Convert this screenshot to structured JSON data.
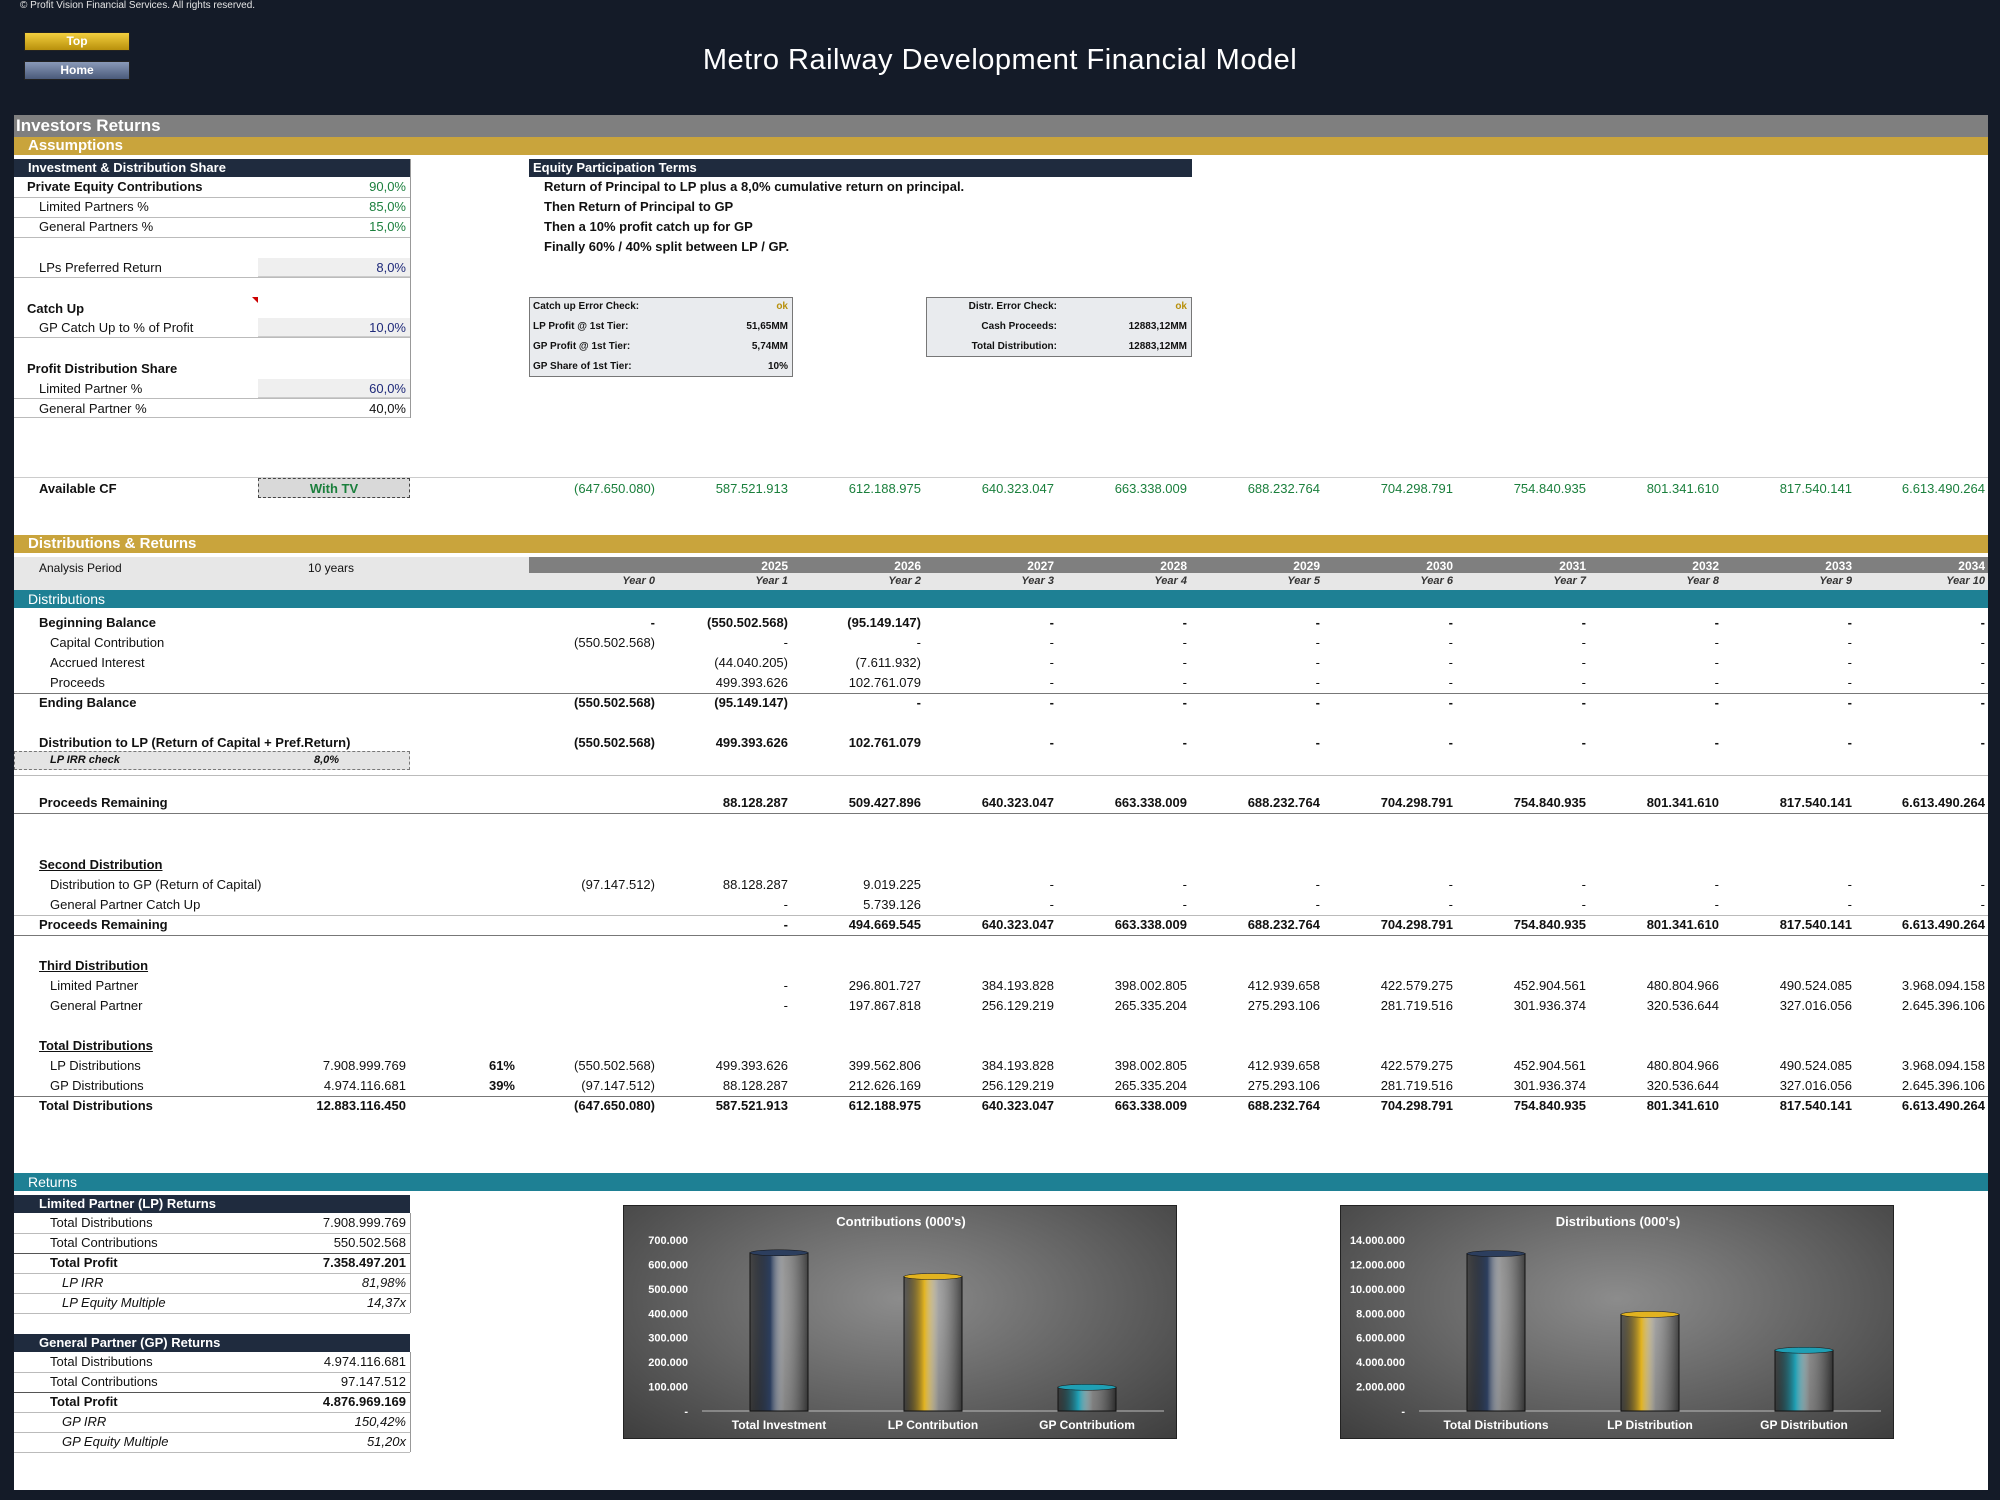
{
  "copyright": "© Profit Vision Financial Services. All rights reserved.",
  "nav": {
    "top": "Top",
    "home": "Home"
  },
  "title": "Metro Railway Development Financial Model",
  "section_title": "Investors Returns",
  "assumptions": {
    "band": "Assumptions",
    "header": "Investment & Distribution Share",
    "pe_label": "Private Equity Contributions",
    "pe_value": "90,0%",
    "lp_label": "Limited Partners %",
    "lp_value": "85,0%",
    "gp_label": "General Partners %",
    "gp_value": "15,0%",
    "pref_label": "LPs Preferred Return",
    "pref_value": "8,0%",
    "catchup_title": "Catch Up",
    "catchup_label": "GP Catch Up to % of Profit",
    "catchup_value": "10,0%",
    "profit_title": "Profit Distribution Share",
    "lp_share_label": "Limited Partner %",
    "lp_share_value": "60,0%",
    "gp_share_label": "General Partner %",
    "gp_share_value": "40,0%"
  },
  "terms": {
    "header": "Equity Participation Terms",
    "lines": [
      "Return of Principal to LP plus a 8,0% cumulative return on principal.",
      "Then Return of Principal to GP",
      "Then a 10% profit catch up for GP",
      "Finally 60% / 40% split between LP / GP."
    ]
  },
  "catchup_check": {
    "rows": [
      {
        "label": "Catch up Error Check:",
        "value": "ok"
      },
      {
        "label": "LP Profit @ 1st Tier:",
        "value": "51,65MM"
      },
      {
        "label": "GP Profit @ 1st Tier:",
        "value": "5,74MM"
      },
      {
        "label": "GP Share of 1st Tier:",
        "value": "10%"
      }
    ]
  },
  "distr_check": {
    "rows": [
      {
        "label": "Distr. Error Check:",
        "value": "ok"
      },
      {
        "label": "Cash Proceeds:",
        "value": "12883,12MM"
      },
      {
        "label": "Total Distribution:",
        "value": "12883,12MM"
      }
    ]
  },
  "available_cf": {
    "label": "Available CF",
    "selector": "With TV",
    "values": [
      "(647.650.080)",
      "587.521.913",
      "612.188.975",
      "640.323.047",
      "663.338.009",
      "688.232.764",
      "704.298.791",
      "754.840.935",
      "801.341.610",
      "817.540.141",
      "6.613.490.264"
    ]
  },
  "dist_returns": {
    "band": "Distributions & Returns",
    "period_label": "Analysis Period",
    "period_value": "10 years",
    "years": [
      "",
      "2025",
      "2026",
      "2027",
      "2028",
      "2029",
      "2030",
      "2031",
      "2032",
      "2033",
      "2034"
    ],
    "year_labels": [
      "Year 0",
      "Year 1",
      "Year 2",
      "Year 3",
      "Year 4",
      "Year 5",
      "Year 6",
      "Year 7",
      "Year 8",
      "Year 9",
      "Year 10"
    ]
  },
  "distributions_band": "Distributions",
  "rows": {
    "beginning": {
      "label": "Beginning Balance",
      "values": [
        "-",
        "(550.502.568)",
        "(95.149.147)",
        "-",
        "-",
        "-",
        "-",
        "-",
        "-",
        "-",
        "-"
      ]
    },
    "capital": {
      "label": "Capital Contribution",
      "values": [
        "(550.502.568)",
        "-",
        "-",
        "-",
        "-",
        "-",
        "-",
        "-",
        "-",
        "-",
        "-"
      ]
    },
    "accrued": {
      "label": "Accrued Interest",
      "values": [
        "",
        "(44.040.205)",
        "(7.611.932)",
        "-",
        "-",
        "-",
        "-",
        "-",
        "-",
        "-",
        "-"
      ]
    },
    "proceeds": {
      "label": "Proceeds",
      "values": [
        "",
        "499.393.626",
        "102.761.079",
        "-",
        "-",
        "-",
        "-",
        "-",
        "-",
        "-",
        "-"
      ]
    },
    "ending": {
      "label": "Ending Balance",
      "values": [
        "(550.502.568)",
        "(95.149.147)",
        "-",
        "-",
        "-",
        "-",
        "-",
        "-",
        "-",
        "-",
        "-"
      ]
    },
    "dist_lp": {
      "label": "Distribution to LP (Return of Capital + Pref.Return)",
      "values": [
        "(550.502.568)",
        "499.393.626",
        "102.761.079",
        "-",
        "-",
        "-",
        "-",
        "-",
        "-",
        "-",
        "-"
      ]
    },
    "irr_check": {
      "label": "LP IRR check",
      "value": "8,0%"
    },
    "remaining1": {
      "label": "Proceeds Remaining",
      "values": [
        "",
        "88.128.287",
        "509.427.896",
        "640.323.047",
        "663.338.009",
        "688.232.764",
        "704.298.791",
        "754.840.935",
        "801.341.610",
        "817.540.141",
        "6.613.490.264"
      ]
    },
    "second_title": "Second Distribution",
    "dist_gp": {
      "label": "Distribution to GP (Return of Capital)",
      "values": [
        "(97.147.512)",
        "88.128.287",
        "9.019.225",
        "-",
        "-",
        "-",
        "-",
        "-",
        "-",
        "-",
        "-"
      ]
    },
    "gp_catch": {
      "label": "General Partner Catch Up",
      "values": [
        "",
        "-",
        "5.739.126",
        "-",
        "-",
        "-",
        "-",
        "-",
        "-",
        "-",
        "-"
      ]
    },
    "remaining2": {
      "label": "Proceeds Remaining",
      "values": [
        "",
        "-",
        "494.669.545",
        "640.323.047",
        "663.338.009",
        "688.232.764",
        "704.298.791",
        "754.840.935",
        "801.341.610",
        "817.540.141",
        "6.613.490.264"
      ]
    },
    "third_title": "Third Distribution",
    "third_lp": {
      "label": "Limited Partner",
      "values": [
        "",
        "-",
        "296.801.727",
        "384.193.828",
        "398.002.805",
        "412.939.658",
        "422.579.275",
        "452.904.561",
        "480.804.966",
        "490.524.085",
        "3.968.094.158"
      ]
    },
    "third_gp": {
      "label": "General Partner",
      "values": [
        "",
        "-",
        "197.867.818",
        "256.129.219",
        "265.335.204",
        "275.293.106",
        "281.719.516",
        "301.936.374",
        "320.536.644",
        "327.016.056",
        "2.645.396.106"
      ]
    },
    "total_title": "Total Distributions",
    "tot_lp": {
      "label": "LP Distributions",
      "total": "7.908.999.769",
      "pct": "61%",
      "values": [
        "(550.502.568)",
        "499.393.626",
        "399.562.806",
        "384.193.828",
        "398.002.805",
        "412.939.658",
        "422.579.275",
        "452.904.561",
        "480.804.966",
        "490.524.085",
        "3.968.094.158"
      ]
    },
    "tot_gp": {
      "label": "GP Distributions",
      "total": "4.974.116.681",
      "pct": "39%",
      "values": [
        "(97.147.512)",
        "88.128.287",
        "212.626.169",
        "256.129.219",
        "265.335.204",
        "275.293.106",
        "281.719.516",
        "301.936.374",
        "320.536.644",
        "327.016.056",
        "2.645.396.106"
      ]
    },
    "tot_all": {
      "label": "Total Distributions",
      "total": "12.883.116.450",
      "values": [
        "(647.650.080)",
        "587.521.913",
        "612.188.975",
        "640.323.047",
        "663.338.009",
        "688.232.764",
        "704.298.791",
        "754.840.935",
        "801.341.610",
        "817.540.141",
        "6.613.490.264"
      ]
    }
  },
  "returns": {
    "band": "Returns",
    "lp": {
      "header": "Limited Partner (LP) Returns",
      "rows": [
        {
          "label": "Total Distributions",
          "value": "7.908.999.769"
        },
        {
          "label": "Total Contributions",
          "value": "550.502.568"
        },
        {
          "label": "Total Profit",
          "value": "7.358.497.201"
        },
        {
          "label": "LP IRR",
          "value": "81,98%"
        },
        {
          "label": "LP Equity Multiple",
          "value": "14,37x"
        }
      ]
    },
    "gp": {
      "header": "General Partner (GP) Returns",
      "rows": [
        {
          "label": "Total Distributions",
          "value": "4.974.116.681"
        },
        {
          "label": "Total Contributions",
          "value": "97.147.512"
        },
        {
          "label": "Total Profit",
          "value": "4.876.969.169"
        },
        {
          "label": "GP IRR",
          "value": "150,42%"
        },
        {
          "label": "GP Equity Multiple",
          "value": "51,20x"
        }
      ]
    }
  },
  "chart_data": [
    {
      "type": "bar",
      "title": "Contributions (000's)",
      "categories": [
        "Total Investment",
        "LP Contribution",
        "GP Contributiom"
      ],
      "values": [
        647650,
        550503,
        97148
      ],
      "ylim": [
        0,
        700000
      ],
      "ticks": [
        "-",
        "100.000",
        "200.000",
        "300.000",
        "400.000",
        "500.000",
        "600.000",
        "700.000"
      ],
      "colors": [
        "#2c3e5e",
        "#e2b320",
        "#1f9fb4"
      ]
    },
    {
      "type": "bar",
      "title": "Distributions (000's)",
      "categories": [
        "Total Distributions",
        "LP Distribution",
        "GP Distribution"
      ],
      "values": [
        12883116,
        7909000,
        4974117
      ],
      "ylim": [
        0,
        14000000
      ],
      "ticks": [
        "-",
        "2.000.000",
        "4.000.000",
        "6.000.000",
        "8.000.000",
        "10.000.000",
        "12.000.000",
        "14.000.000"
      ],
      "colors": [
        "#2c3e5e",
        "#e2b320",
        "#1f9fb4"
      ]
    }
  ]
}
